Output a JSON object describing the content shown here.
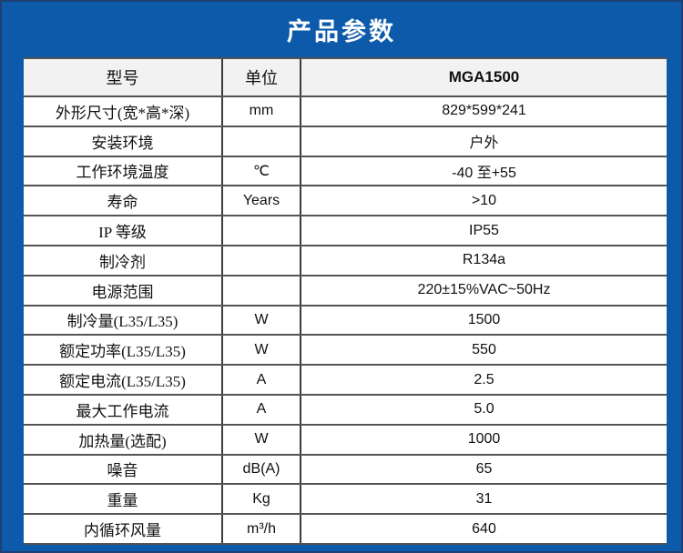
{
  "page": {
    "title": "产品参数"
  },
  "colors": {
    "page_bg": "#0d5aab",
    "page_border": "#1e3f72",
    "title_text": "#ffffff",
    "header_row_bg": "#f2f2f3",
    "grid_line": "#545454",
    "grid_vline": "#3c3c3c"
  },
  "table": {
    "header": {
      "param_label": "型号",
      "unit_label": "单位",
      "model_value": "MGA1500"
    },
    "rows": [
      {
        "param": "外形尺寸(宽*高*深)",
        "unit": "mm",
        "value": "829*599*241"
      },
      {
        "param": "安装环境",
        "unit": "",
        "value": "户外"
      },
      {
        "param": "工作环境温度",
        "unit": "℃",
        "value": "-40 至+55"
      },
      {
        "param": "寿命",
        "unit": "Years",
        "value": ">10"
      },
      {
        "param": "IP 等级",
        "unit": "",
        "value": "IP55"
      },
      {
        "param": "制冷剂",
        "unit": "",
        "value": "R134a"
      },
      {
        "param": "电源范围",
        "unit": "",
        "value": "220±15%VAC~50Hz"
      },
      {
        "param": "制冷量(L35/L35)",
        "unit": "W",
        "value": "1500"
      },
      {
        "param": "额定功率(L35/L35)",
        "unit": "W",
        "value": "550"
      },
      {
        "param": "额定电流(L35/L35)",
        "unit": "A",
        "value": "2.5"
      },
      {
        "param": "最大工作电流",
        "unit": "A",
        "value": "5.0"
      },
      {
        "param": "加热量(选配)",
        "unit": "W",
        "value": "1000"
      },
      {
        "param": "噪音",
        "unit": "dB(A)",
        "value": "65"
      },
      {
        "param": "重量",
        "unit": "Kg",
        "value": "31"
      },
      {
        "param": "内循环风量",
        "unit": "m³/h",
        "value": "640"
      }
    ]
  }
}
